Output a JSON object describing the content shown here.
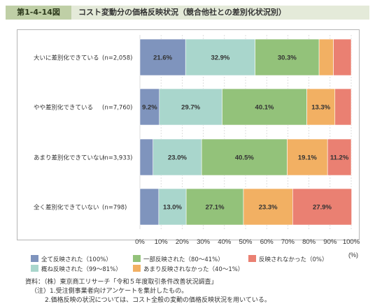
{
  "header": {
    "figure_number": "第1-4-14図",
    "title": "コスト変動分の価格反映状況（競合他社との差別化状況別）"
  },
  "chart_data": {
    "type": "bar",
    "orientation": "horizontal",
    "stacked": true,
    "categories": [
      "大いに差別化できている",
      "やや差別化できている",
      "あまり差別化できていない",
      "全く差別化できていない"
    ],
    "n_labels": [
      "(n=2,058)",
      "(n=7,760)",
      "(n=3,933)",
      "(n=798)"
    ],
    "series": [
      {
        "name": "全て反映された（100%）",
        "color": "#7f94bd",
        "values": [
          21.6,
          9.2,
          6.2,
          8.9
        ],
        "labels": [
          "21.6%",
          "9.2%",
          "",
          ""
        ]
      },
      {
        "name": "概ね反映された（99〜81%）",
        "color": "#a9d6cc",
        "values": [
          32.9,
          29.7,
          23.0,
          13.0
        ],
        "labels": [
          "32.9%",
          "29.7%",
          "23.0%",
          "13.0%"
        ]
      },
      {
        "name": "一部反映された（80〜41%）",
        "color": "#93c27a",
        "values": [
          30.3,
          40.1,
          40.5,
          27.1
        ],
        "labels": [
          "30.3%",
          "40.1%",
          "40.5%",
          "27.1%"
        ]
      },
      {
        "name": "あまり反映されなかった（40〜1%）",
        "color": "#f2b063",
        "values": [
          6.8,
          13.3,
          19.1,
          23.3
        ],
        "labels": [
          "",
          "13.3%",
          "19.1%",
          "23.3%"
        ]
      },
      {
        "name": "反映されなかった（0%）",
        "color": "#ea8072",
        "values": [
          8.4,
          7.7,
          11.2,
          27.9
        ],
        "labels": [
          "",
          "",
          "11.2%",
          "27.9%"
        ]
      }
    ],
    "xlim": [
      0,
      100
    ],
    "xticks": [
      "0%",
      "10%",
      "20%",
      "30%",
      "40%",
      "50%",
      "60%",
      "70%",
      "80%",
      "90%",
      "100%"
    ],
    "xunit": "(%)",
    "grid": true
  },
  "notes": {
    "source": "資料：（株）東京商工リサーチ「令和５年度取引条件改善状況調査」",
    "note1": "（注）1.受注側事業者向けアンケートを集計したもの。",
    "note2": "2.価格反映の状況については、コスト全般の変動の価格反映状況を用いている。"
  }
}
